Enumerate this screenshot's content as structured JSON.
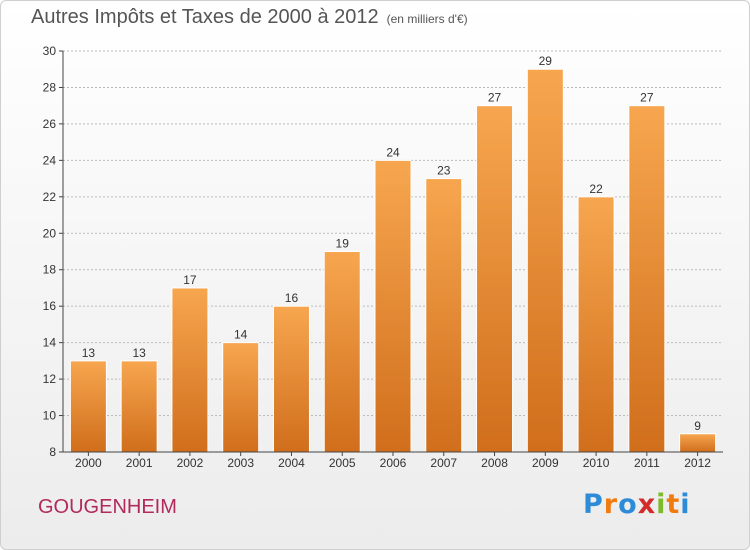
{
  "title": "Autres Impôts et Taxes de 2000 à 2012",
  "unit": "(en milliers d'€)",
  "commune": "GOUGENHEIM",
  "logo": {
    "text": "Proxiti",
    "letter_colors": [
      "#2e8bd8",
      "#f07c10",
      "#2e8bd8",
      "#d42a2a",
      "#7dbb2b",
      "#f07c10",
      "#2e8bd8"
    ]
  },
  "colors": {
    "bar_light": "#f7a64f",
    "bar_dark": "#d06e1c",
    "bar_border": "#ffffff",
    "grid": "#bbbbbb",
    "axis": "#444444",
    "text": "#333333"
  },
  "chart_data": {
    "type": "bar",
    "title": "Autres Impôts et Taxes de 2000 à 2012",
    "subtitle": "(en milliers d'€)",
    "xlabel": "",
    "ylabel": "",
    "categories": [
      "2000",
      "2001",
      "2002",
      "2003",
      "2004",
      "2005",
      "2006",
      "2007",
      "2008",
      "2009",
      "2010",
      "2011",
      "2012"
    ],
    "values": [
      13,
      13,
      17,
      14,
      16,
      19,
      24,
      23,
      27,
      29,
      22,
      27,
      9
    ],
    "ylim": [
      8,
      30
    ],
    "yticks": [
      8,
      10,
      12,
      14,
      16,
      18,
      20,
      22,
      24,
      26,
      28,
      30
    ],
    "grid": true
  }
}
